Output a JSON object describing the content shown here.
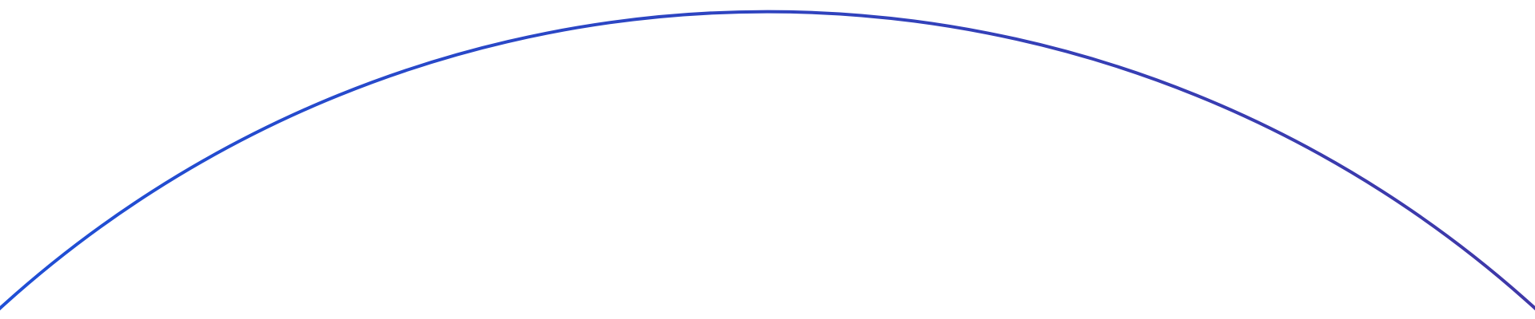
{
  "arc": {
    "color_start": "#1f4fd6",
    "color_end": "#3f38a8"
  }
}
